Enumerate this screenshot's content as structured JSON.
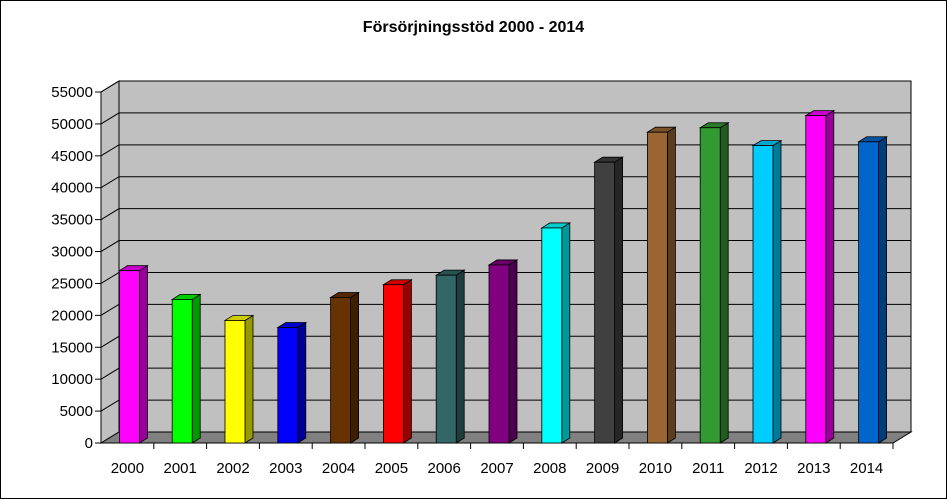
{
  "chart_data": {
    "type": "bar",
    "title": "Försörjningsstöd 2000 - 2014",
    "xlabel": "",
    "ylabel": "",
    "categories": [
      "2000",
      "2001",
      "2002",
      "2003",
      "2004",
      "2005",
      "2006",
      "2007",
      "2008",
      "2009",
      "2010",
      "2011",
      "2012",
      "2013",
      "2014"
    ],
    "values": [
      27000,
      22500,
      19200,
      18100,
      22800,
      24800,
      26300,
      27900,
      33700,
      44000,
      48700,
      49400,
      46600,
      51300,
      47200
    ],
    "ylim": [
      0,
      55000
    ],
    "yticks": [
      "0",
      "5000",
      "10000",
      "15000",
      "20000",
      "25000",
      "30000",
      "35000",
      "40000",
      "45000",
      "50000",
      "55000"
    ],
    "grid": true,
    "legend": "none",
    "style": "3d-columns",
    "colors": [
      "#ff00ff",
      "#00ff00",
      "#ffff00",
      "#0000ff",
      "#663300",
      "#ff0000",
      "#336666",
      "#800080",
      "#00ffff",
      "#404040",
      "#996633",
      "#339933",
      "#00ccff",
      "#ff00ff",
      "#0066cc"
    ],
    "wall_color": "#c0c0c0",
    "floor_color": "#808080",
    "wall_border_color": "#000000"
  }
}
